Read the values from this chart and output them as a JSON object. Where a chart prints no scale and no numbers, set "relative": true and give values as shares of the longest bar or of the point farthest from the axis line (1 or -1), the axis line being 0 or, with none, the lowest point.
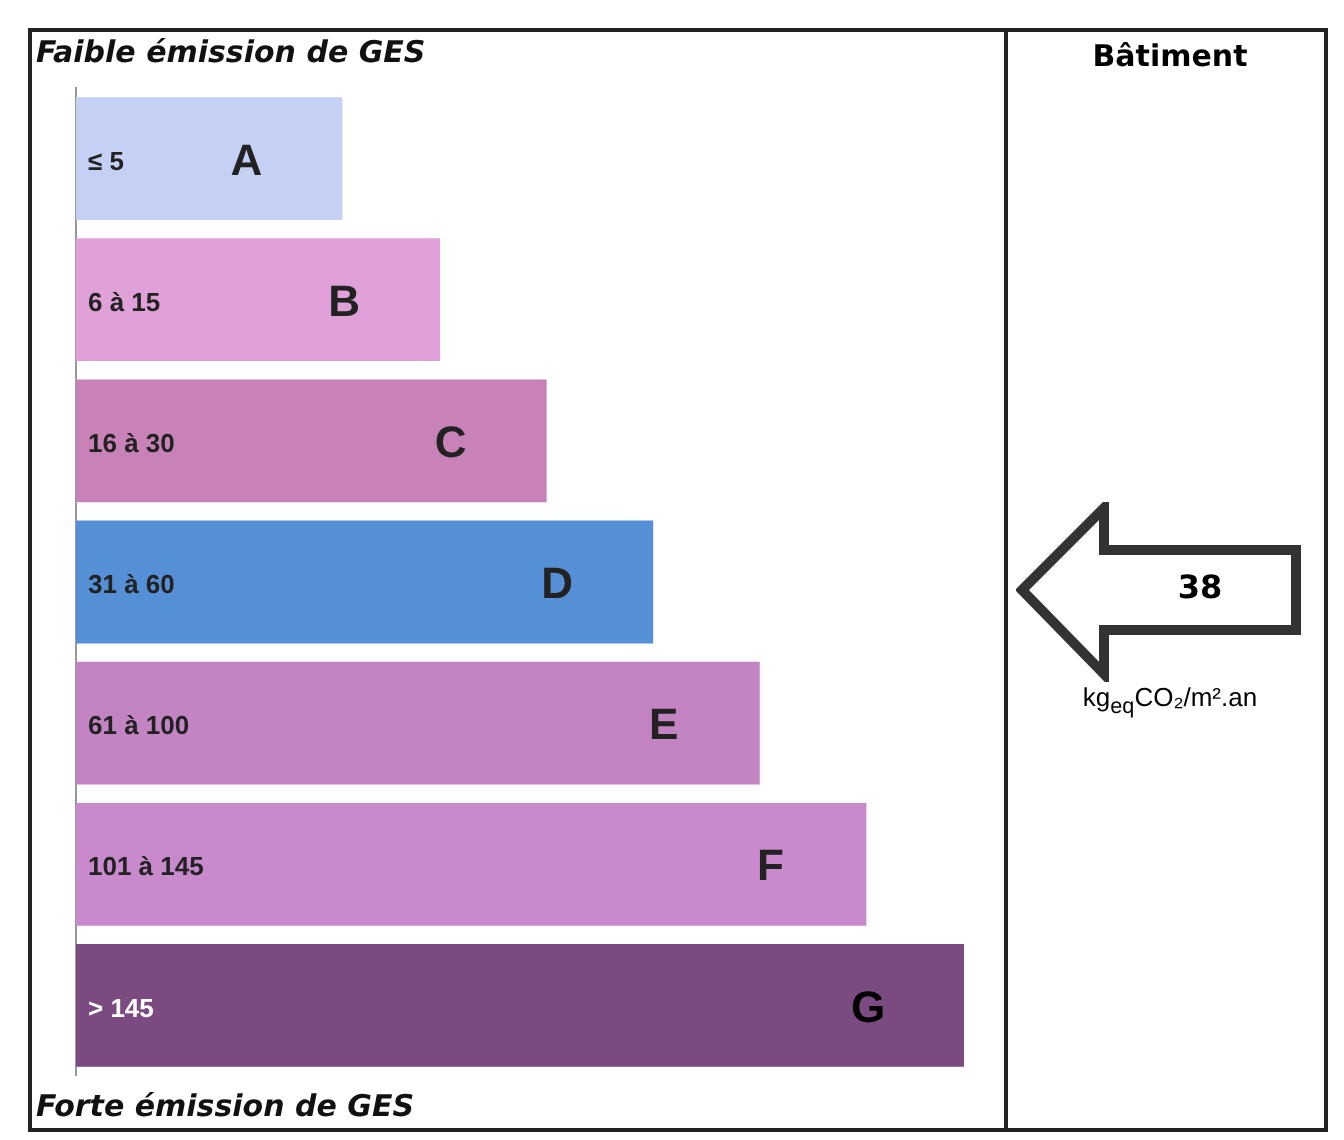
{
  "chart_data": {
    "type": "bar",
    "orientation": "horizontal",
    "relative": true,
    "title": "Faible émission de GES",
    "categories": [
      "A",
      "B",
      "C",
      "D",
      "E",
      "F",
      "G"
    ],
    "values": [
      0.3,
      0.41,
      0.53,
      0.65,
      0.77,
      0.89,
      1
    ],
    "colors": [
      "#c5d0f5",
      "#e0a0d8",
      "#c882b8",
      "#5590d6",
      "#c384c4",
      "#c88acc",
      "#7a4a80"
    ],
    "annotations": [
      "≤ 5",
      "6 à 15",
      "16 à 30",
      "31 à 60",
      "61 à 100",
      "101 à 145",
      "> 145",
      "Forte émission de GES",
      "Bâtiment",
      "38",
      "kg$_{eq}$CO₂/m².an"
    ]
  }
}
